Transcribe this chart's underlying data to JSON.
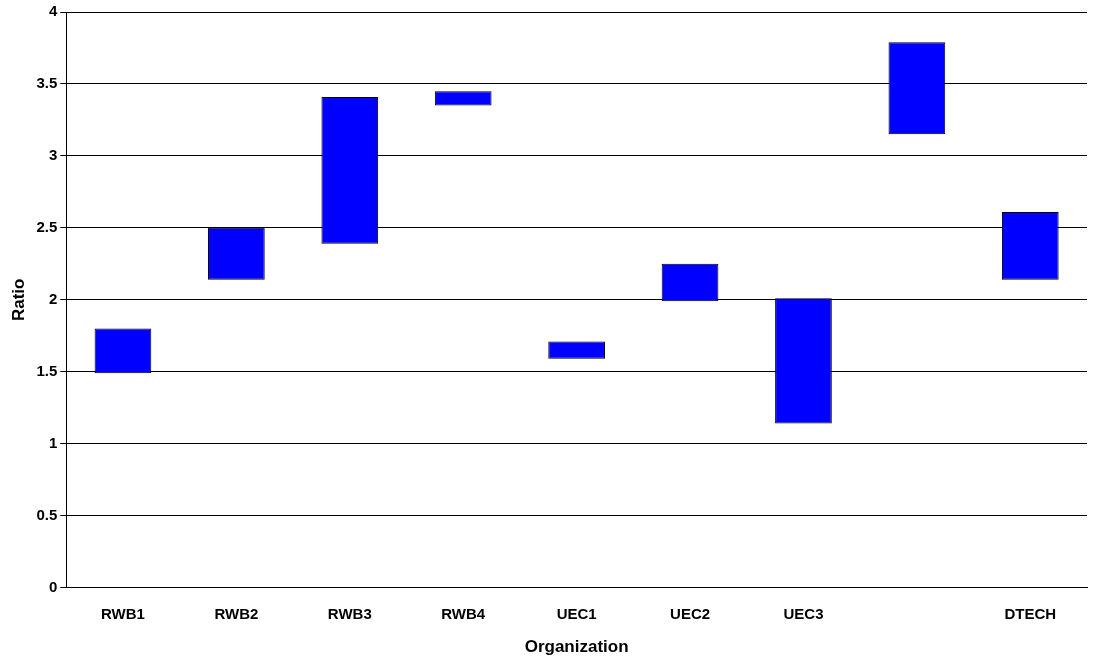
{
  "chart_data": {
    "type": "bar",
    "xlabel": "Organization",
    "ylabel": "Ratio",
    "categories": [
      "RWB1",
      "RWB2",
      "RWB3",
      "RWB4",
      "UEC1",
      "UEC2",
      "UEC3",
      null,
      "DTECH"
    ],
    "base": [
      1.49,
      2.14,
      2.39,
      3.35,
      1.59,
      1.99,
      1.14,
      3.15,
      2.14
    ],
    "values": [
      0.31,
      0.36,
      1.02,
      0.1,
      0.12,
      0.26,
      0.87,
      0.64,
      0.47
    ],
    "color": "#0000ff",
    "ylim": [
      0,
      4
    ],
    "yticks": [
      0,
      0.5,
      1,
      1.5,
      2,
      2.5,
      3,
      3.5,
      4
    ],
    "grid": "y",
    "legend": false
  }
}
